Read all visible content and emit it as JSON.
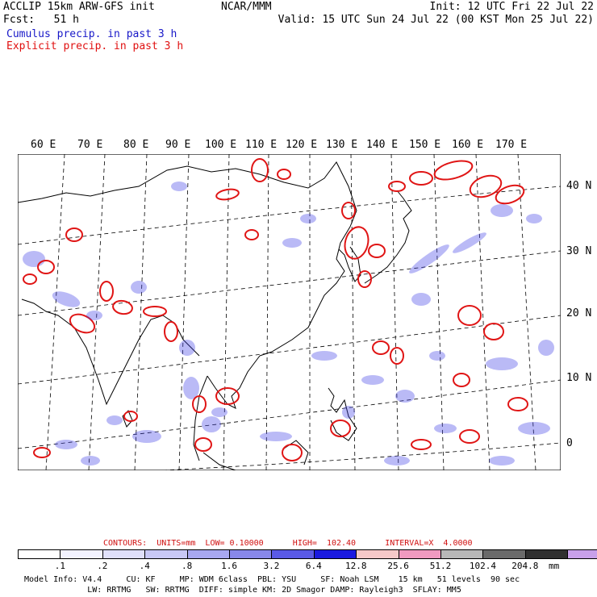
{
  "header": {
    "left_line1": "ACCLIP 15km ARW-GFS init",
    "left_line2": "Fcst:   51 h",
    "center": "NCAR/MMM",
    "right_line1": "Init: 12 UTC Fri 22 Jul 22",
    "right_line2": "Valid: 15 UTC Sun 24 Jul 22 (00 KST Mon 25 Jul 22)",
    "cumulus_label": "Cumulus precip. in past 3 h",
    "explicit_label": "Explicit precip. in past 3 h"
  },
  "map": {
    "lon_labels": [
      "60 E",
      "70 E",
      "80 E",
      "90 E",
      "100 E",
      "110 E",
      "120 E",
      "130 E",
      "140 E",
      "150 E",
      "160 E",
      "170 E"
    ],
    "lat_labels": [
      "40 N",
      "30 N",
      "20 N",
      "10 N",
      "0"
    ],
    "colors": {
      "cumulus": "#3a3ae6",
      "explicit": "#e01515",
      "coast": "#000000"
    }
  },
  "contours": {
    "text": "CONTOURS:  UNITS=mm  LOW= 0.10000      HIGH=  102.40      INTERVAL=X  4.0000"
  },
  "colorbar": {
    "unit": "mm",
    "labels": [
      ".1",
      ".2",
      ".4",
      ".8",
      "1.6",
      "3.2",
      "6.4",
      "12.8",
      "25.6",
      "51.2",
      "102.4",
      "204.8"
    ],
    "colors": [
      "#ffffff",
      "#f2f2ff",
      "#e0e0fa",
      "#c8c8f5",
      "#a8a8f0",
      "#8888ea",
      "#5a5ae6",
      "#1a1ae0",
      "#f5c8c8",
      "#f09ac0",
      "#b8b8b8",
      "#6a6a6a",
      "#303030",
      "#c8a0ea"
    ]
  },
  "footer": {
    "line1": "Model Info: V4.4     CU: KF     MP: WDM 6class  PBL: YSU     SF: Noah LSM    15 km   51 levels  90 sec",
    "line2": "             LW: RRTMG   SW: RRTMG  DIFF: simple KM: 2D Smagor DAMP: Rayleigh3  SFLAY: MM5"
  }
}
